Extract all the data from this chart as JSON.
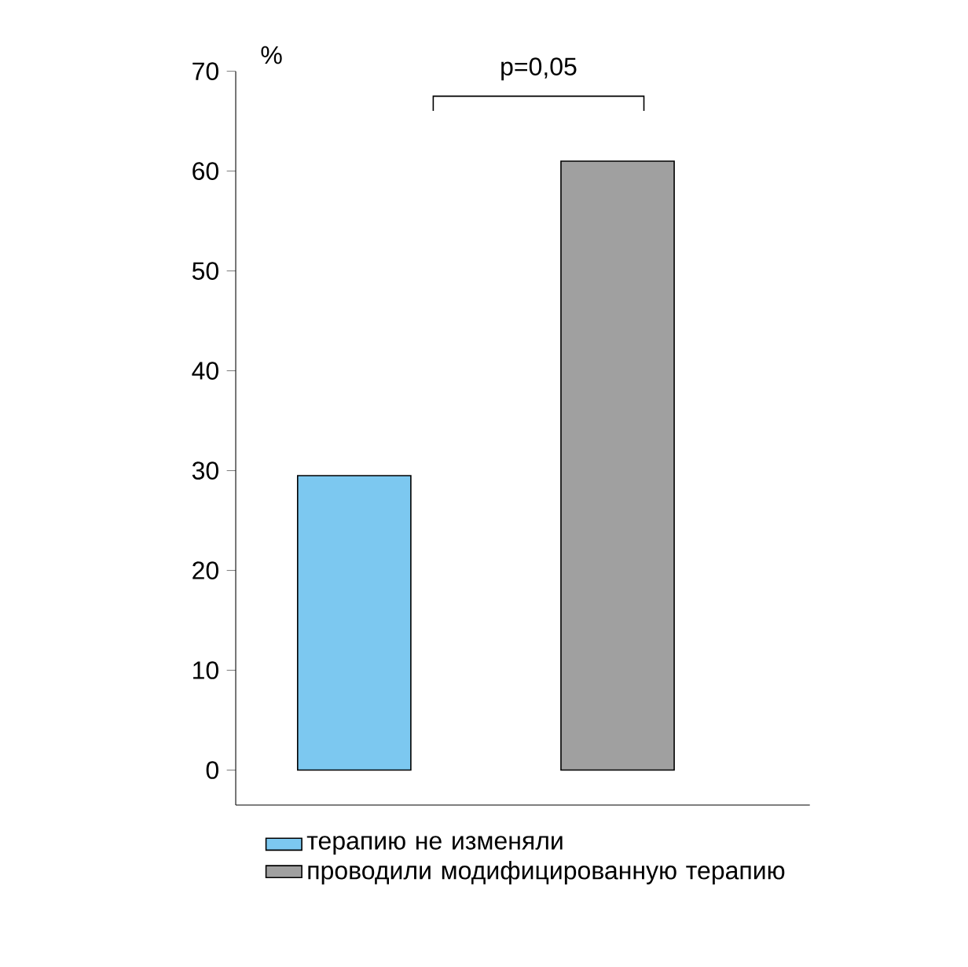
{
  "chart_data": {
    "type": "bar",
    "ylabel": "%",
    "categories": [
      null,
      null
    ],
    "series": [
      {
        "name": "терапию не изменяли",
        "color": "#7cc8f0",
        "values": [
          29.5,
          null
        ]
      },
      {
        "name": "проводили модифицированную терапию",
        "color": "#a0a0a0",
        "values": [
          null,
          61
        ]
      }
    ],
    "ylim": [
      -3.5,
      70
    ],
    "yticks": [
      0,
      10,
      20,
      30,
      40,
      50,
      60,
      70
    ],
    "annotations": [
      "p=0,05"
    ],
    "legend": "bottom",
    "grid": false
  }
}
